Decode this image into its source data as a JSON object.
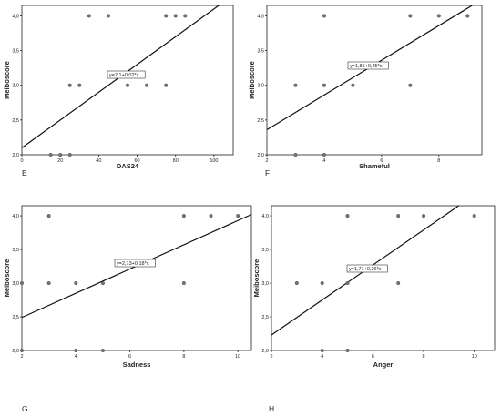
{
  "chart_data": [
    {
      "panel": "E",
      "type": "scatter",
      "xlabel": "DAS24",
      "ylabel": "Meiboscore",
      "xlim": [
        0,
        110
      ],
      "ylim": [
        2.0,
        4.15
      ],
      "x_ticks": [
        "0",
        "20",
        "40",
        "60",
        "80",
        "100"
      ],
      "y_ticks": [
        "2,0",
        "2,5",
        "3,0",
        "3,5",
        "4,0"
      ],
      "equation": "y=2,1+0,02*x",
      "fit": {
        "intercept": 2.1,
        "slope": 0.02
      },
      "points": [
        {
          "x": 15,
          "y": 2.0
        },
        {
          "x": 20,
          "y": 2.0
        },
        {
          "x": 25,
          "y": 2.0
        },
        {
          "x": 25,
          "y": 3.0
        },
        {
          "x": 30,
          "y": 3.0
        },
        {
          "x": 35,
          "y": 4.0
        },
        {
          "x": 45,
          "y": 4.0
        },
        {
          "x": 55,
          "y": 3.0
        },
        {
          "x": 65,
          "y": 3.0
        },
        {
          "x": 75,
          "y": 3.0
        },
        {
          "x": 75,
          "y": 4.0
        },
        {
          "x": 80,
          "y": 4.0
        },
        {
          "x": 85,
          "y": 4.0
        }
      ]
    },
    {
      "panel": "F",
      "type": "scatter",
      "xlabel": "Shameful",
      "ylabel": "Meiboscore",
      "xlim": [
        2,
        9.5
      ],
      "ylim": [
        2.0,
        4.15
      ],
      "x_ticks": [
        "2",
        "4",
        "6",
        "8"
      ],
      "y_ticks": [
        "2,0",
        "2,5",
        "3,0",
        "3,5",
        "4,0"
      ],
      "equation": "y=1,86+0,25*x",
      "fit": {
        "intercept": 1.86,
        "slope": 0.25
      },
      "points": [
        {
          "x": 3,
          "y": 2.0
        },
        {
          "x": 4,
          "y": 2.0
        },
        {
          "x": 3,
          "y": 3.0
        },
        {
          "x": 4,
          "y": 3.0
        },
        {
          "x": 5,
          "y": 3.0
        },
        {
          "x": 7,
          "y": 3.0
        },
        {
          "x": 4,
          "y": 4.0
        },
        {
          "x": 7,
          "y": 4.0
        },
        {
          "x": 8,
          "y": 4.0
        },
        {
          "x": 9,
          "y": 4.0
        }
      ]
    },
    {
      "panel": "G",
      "type": "scatter",
      "xlabel": "Sadness",
      "ylabel": "Meiboscore",
      "xlim": [
        2,
        10.5
      ],
      "ylim": [
        2.0,
        4.15
      ],
      "x_ticks": [
        "2",
        "4",
        "6",
        "8",
        "10"
      ],
      "y_ticks": [
        "2,0",
        "2,5",
        "3,0",
        "3,5",
        "4,0"
      ],
      "equation": "y=2,13+0,18*x",
      "fit": {
        "intercept": 2.13,
        "slope": 0.18
      },
      "points": [
        {
          "x": 2,
          "y": 2.0
        },
        {
          "x": 4,
          "y": 2.0
        },
        {
          "x": 5,
          "y": 2.0
        },
        {
          "x": 2,
          "y": 3.0
        },
        {
          "x": 3,
          "y": 3.0
        },
        {
          "x": 4,
          "y": 3.0
        },
        {
          "x": 5,
          "y": 3.0
        },
        {
          "x": 8,
          "y": 3.0
        },
        {
          "x": 3,
          "y": 4.0
        },
        {
          "x": 8,
          "y": 4.0
        },
        {
          "x": 9,
          "y": 4.0
        },
        {
          "x": 10,
          "y": 4.0
        }
      ]
    },
    {
      "panel": "H",
      "type": "scatter",
      "xlabel": "Anger",
      "ylabel": "Meiboscore",
      "xlim": [
        2,
        10.8
      ],
      "ylim": [
        2.0,
        4.15
      ],
      "x_ticks": [
        "2",
        "4",
        "6",
        "8",
        "10"
      ],
      "y_ticks": [
        "2,0",
        "2,5",
        "3,0",
        "3,5",
        "4,0"
      ],
      "equation": "y=1,71+0,26*x",
      "fit": {
        "intercept": 1.71,
        "slope": 0.26
      },
      "points": [
        {
          "x": 4,
          "y": 2.0
        },
        {
          "x": 5,
          "y": 2.0
        },
        {
          "x": 3,
          "y": 3.0
        },
        {
          "x": 4,
          "y": 3.0
        },
        {
          "x": 5,
          "y": 3.0
        },
        {
          "x": 7,
          "y": 3.0
        },
        {
          "x": 5,
          "y": 4.0
        },
        {
          "x": 7,
          "y": 4.0
        },
        {
          "x": 8,
          "y": 4.0
        },
        {
          "x": 10,
          "y": 4.0
        }
      ]
    }
  ]
}
